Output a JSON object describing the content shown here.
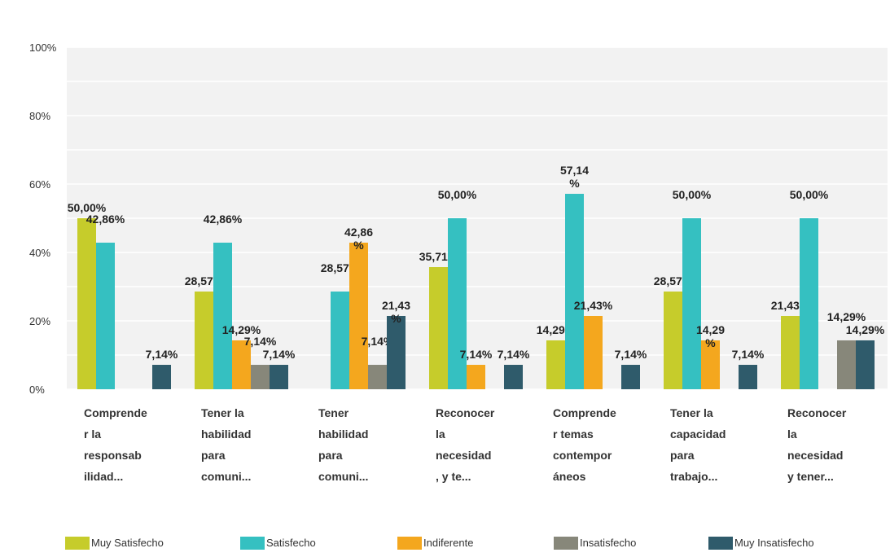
{
  "chart_data": {
    "type": "bar",
    "categories": [
      "Comprende\nr la\nresponsab\nilidad...",
      "Tener la\nhabilidad\npara\ncomuni...",
      "Tener\nhabilidad\npara\ncomuni...",
      "Reconocer\nla\nnecesidad\n, y te...",
      "Comprende\nr temas\ncontempor\náneos",
      "Tener la\ncapacidad\npara\ntrabajo...",
      "Reconocer\nla\nnecesidad\ny tener..."
    ],
    "series": [
      {
        "name": "Muy Satisfecho",
        "color": "#c6cc2b",
        "values": [
          50.0,
          28.57,
          0,
          35.71,
          14.29,
          28.57,
          21.43
        ],
        "value_labels": [
          "50,00%",
          "28,57%",
          null,
          "35,71%",
          "14,29%",
          "28,57%",
          "21,43%"
        ]
      },
      {
        "name": "Satisfecho",
        "color": "#35c0c1",
        "values": [
          42.86,
          42.86,
          28.57,
          50.0,
          57.14,
          50.0,
          50.0
        ],
        "value_labels": [
          "42,86%",
          "42,86%",
          "28,57%",
          "50,00%",
          "57,14\n%",
          "50,00%",
          "50,00%"
        ]
      },
      {
        "name": "Indiferente",
        "color": "#f4a71e",
        "values": [
          0,
          14.29,
          42.86,
          7.14,
          21.43,
          14.29,
          0
        ],
        "value_labels": [
          null,
          "14,29%",
          "42,86\n%",
          "7,14%",
          "21,43%",
          "14,29\n%",
          null
        ]
      },
      {
        "name": "Insatisfecho",
        "color": "#87877a",
        "values": [
          0,
          7.14,
          7.14,
          0,
          0,
          0,
          14.29
        ],
        "value_labels": [
          null,
          "7,14%",
          "7,14%",
          null,
          null,
          null,
          "14,29%"
        ]
      },
      {
        "name": "Muy Insatisfecho",
        "color": "#2f5b6b",
        "values": [
          7.14,
          7.14,
          21.43,
          7.14,
          7.14,
          7.14,
          14.29
        ],
        "value_labels": [
          "7,14%",
          "7,14%",
          "21,43\n%",
          "7,14%",
          "7,14%",
          "7,14%",
          "14,29%"
        ]
      }
    ],
    "ylim": [
      0,
      100
    ],
    "yticks": [
      {
        "value": 0,
        "label": "0%"
      },
      {
        "value": 20,
        "label": "20%"
      },
      {
        "value": 40,
        "label": "40%"
      },
      {
        "value": 60,
        "label": "60%"
      },
      {
        "value": 80,
        "label": "80%"
      },
      {
        "value": 100,
        "label": "100%"
      }
    ],
    "grid": true,
    "legend": "bottom"
  }
}
